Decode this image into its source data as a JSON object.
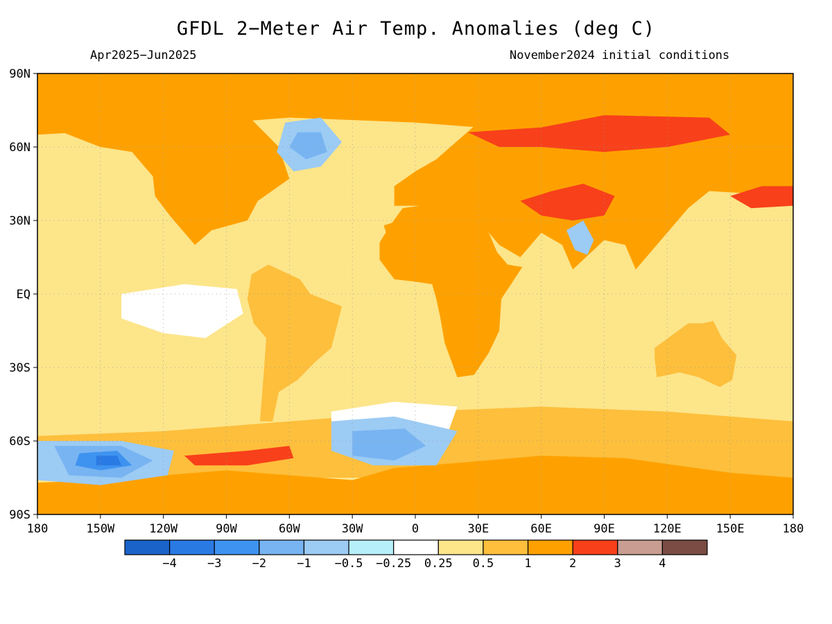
{
  "title": "GFDL 2−Meter Air Temp. Anomalies (deg C)",
  "period": "Apr2025−Jun2025",
  "initial_conditions": "November2024 initial conditions",
  "axes": {
    "lat_labels": [
      "90N",
      "60N",
      "30N",
      "EQ",
      "30S",
      "60S",
      "90S"
    ],
    "lat_values": [
      90,
      60,
      30,
      0,
      -30,
      -60,
      -90
    ],
    "lon_labels": [
      "180",
      "150W",
      "120W",
      "90W",
      "60W",
      "30W",
      "0",
      "30E",
      "60E",
      "90E",
      "120E",
      "150E",
      "180"
    ],
    "lon_values": [
      -180,
      -150,
      -120,
      -90,
      -60,
      -30,
      0,
      30,
      60,
      90,
      120,
      150,
      180
    ]
  },
  "legend": {
    "bins": [
      {
        "color": "#1a63c9"
      },
      {
        "color": "#2a7ae4"
      },
      {
        "color": "#3f93f0"
      },
      {
        "color": "#78b4f2"
      },
      {
        "color": "#9ccbf4"
      },
      {
        "color": "#b6effa"
      },
      {
        "color": "#ffffff"
      },
      {
        "color": "#fde58a"
      },
      {
        "color": "#fdbf3c"
      },
      {
        "color": "#fea100"
      },
      {
        "color": "#f8401a"
      },
      {
        "color": "#c99d92"
      },
      {
        "color": "#7a4c43"
      }
    ],
    "labels": [
      "−4",
      "−3",
      "−2",
      "−1",
      "−0.5",
      "−0.25",
      "0.25",
      "0.5",
      "1",
      "2",
      "3",
      "4"
    ]
  },
  "colors": {
    "background": "#fde58a",
    "warm": "#fdbf3c",
    "hot": "#fea100",
    "very_hot": "#f8401a",
    "neutral": "#ffffff",
    "cool": "#9ccbf4",
    "cold": "#78b4f2",
    "very_cold": "#3f93f0",
    "coldest": "#2a7ae4"
  },
  "map": {
    "regions": [
      {
        "name": "arctic-belt",
        "tier": "hot",
        "pts": [
          [
            -180,
            90
          ],
          [
            180,
            90
          ],
          [
            180,
            60
          ],
          [
            120,
            65
          ],
          [
            60,
            66
          ],
          [
            0,
            70
          ],
          [
            -60,
            72
          ],
          [
            -120,
            68
          ],
          [
            -180,
            65
          ]
        ]
      },
      {
        "name": "north-america",
        "tier": "hot",
        "pts": [
          [
            -168,
            66
          ],
          [
            -150,
            70
          ],
          [
            -130,
            70
          ],
          [
            -110,
            72
          ],
          [
            -80,
            73
          ],
          [
            -65,
            60
          ],
          [
            -60,
            47
          ],
          [
            -75,
            38
          ],
          [
            -80,
            30
          ],
          [
            -97,
            26
          ],
          [
            -105,
            20
          ],
          [
            -117,
            32
          ],
          [
            -124,
            40
          ],
          [
            -125,
            48
          ],
          [
            -135,
            58
          ],
          [
            -150,
            60
          ]
        ]
      },
      {
        "name": "eurasia",
        "tier": "hot",
        "pts": [
          [
            -10,
            36
          ],
          [
            -10,
            44
          ],
          [
            0,
            50
          ],
          [
            10,
            55
          ],
          [
            30,
            70
          ],
          [
            60,
            72
          ],
          [
            100,
            76
          ],
          [
            140,
            73
          ],
          [
            170,
            68
          ],
          [
            180,
            66
          ],
          [
            180,
            40
          ],
          [
            140,
            42
          ],
          [
            130,
            35
          ],
          [
            120,
            25
          ],
          [
            105,
            10
          ],
          [
            100,
            20
          ],
          [
            90,
            22
          ],
          [
            75,
            10
          ],
          [
            70,
            20
          ],
          [
            60,
            25
          ],
          [
            50,
            15
          ],
          [
            40,
            20
          ],
          [
            30,
            30
          ],
          [
            10,
            36
          ]
        ]
      },
      {
        "name": "africa",
        "tier": "hot",
        "pts": [
          [
            -17,
            21
          ],
          [
            -17,
            14
          ],
          [
            -10,
            6
          ],
          [
            0,
            5
          ],
          [
            8,
            4
          ],
          [
            10,
            -2
          ],
          [
            12,
            -10
          ],
          [
            14,
            -20
          ],
          [
            20,
            -34
          ],
          [
            28,
            -33
          ],
          [
            35,
            -24
          ],
          [
            40,
            -15
          ],
          [
            41,
            -2
          ],
          [
            51,
            11
          ],
          [
            44,
            12
          ],
          [
            38,
            18
          ],
          [
            32,
            31
          ],
          [
            10,
            37
          ],
          [
            -6,
            35
          ],
          [
            -12,
            28
          ]
        ]
      },
      {
        "name": "south-america",
        "tier": "warm",
        "pts": [
          [
            -80,
            -2
          ],
          [
            -78,
            8
          ],
          [
            -70,
            12
          ],
          [
            -55,
            6
          ],
          [
            -50,
            0
          ],
          [
            -35,
            -5
          ],
          [
            -37,
            -12
          ],
          [
            -40,
            -22
          ],
          [
            -48,
            -28
          ],
          [
            -56,
            -35
          ],
          [
            -65,
            -40
          ],
          [
            -68,
            -52
          ],
          [
            -74,
            -52
          ],
          [
            -72,
            -30
          ],
          [
            -71,
            -18
          ],
          [
            -77,
            -12
          ]
        ]
      },
      {
        "name": "australia",
        "tier": "warm",
        "pts": [
          [
            114,
            -22
          ],
          [
            122,
            -17
          ],
          [
            130,
            -12
          ],
          [
            137,
            -12
          ],
          [
            142,
            -11
          ],
          [
            146,
            -18
          ],
          [
            153,
            -25
          ],
          [
            151,
            -35
          ],
          [
            145,
            -38
          ],
          [
            135,
            -34
          ],
          [
            126,
            -32
          ],
          [
            115,
            -34
          ],
          [
            114,
            -26
          ]
        ]
      },
      {
        "name": "southern-ring",
        "tier": "warm",
        "pts": [
          [
            -180,
            -58
          ],
          [
            -120,
            -56
          ],
          [
            -60,
            -52
          ],
          [
            0,
            -48
          ],
          [
            60,
            -46
          ],
          [
            120,
            -48
          ],
          [
            180,
            -52
          ],
          [
            180,
            -75
          ],
          [
            -180,
            -75
          ]
        ]
      },
      {
        "name": "antarctica",
        "tier": "hot",
        "pts": [
          [
            -180,
            -90
          ],
          [
            180,
            -90
          ],
          [
            180,
            -75
          ],
          [
            150,
            -73
          ],
          [
            100,
            -67
          ],
          [
            60,
            -66
          ],
          [
            20,
            -69
          ],
          [
            -10,
            -71
          ],
          [
            -30,
            -76
          ],
          [
            -60,
            -74
          ],
          [
            -90,
            -72
          ],
          [
            -120,
            -74
          ],
          [
            -150,
            -76
          ],
          [
            -180,
            -77
          ]
        ]
      },
      {
        "name": "sahara-core",
        "tier": "hot",
        "pts": [
          [
            -15,
            28
          ],
          [
            0,
            32
          ],
          [
            20,
            30
          ],
          [
            35,
            25
          ],
          [
            40,
            15
          ],
          [
            30,
            10
          ],
          [
            10,
            12
          ],
          [
            -10,
            14
          ]
        ]
      },
      {
        "name": "siberia-hot",
        "tier": "very_hot",
        "pts": [
          [
            25,
            66
          ],
          [
            60,
            68
          ],
          [
            90,
            73
          ],
          [
            140,
            72
          ],
          [
            150,
            65
          ],
          [
            120,
            60
          ],
          [
            90,
            58
          ],
          [
            60,
            60
          ],
          [
            40,
            60
          ]
        ]
      },
      {
        "name": "central-asia-hot",
        "tier": "very_hot",
        "pts": [
          [
            50,
            38
          ],
          [
            65,
            42
          ],
          [
            80,
            45
          ],
          [
            95,
            40
          ],
          [
            90,
            32
          ],
          [
            75,
            30
          ],
          [
            60,
            32
          ]
        ]
      },
      {
        "name": "north-pacific-hot",
        "tier": "very_hot",
        "pts": [
          [
            150,
            40
          ],
          [
            165,
            44
          ],
          [
            180,
            44
          ],
          [
            180,
            36
          ],
          [
            160,
            35
          ]
        ]
      },
      {
        "name": "amundsen-hot",
        "tier": "very_hot",
        "pts": [
          [
            -110,
            -66
          ],
          [
            -80,
            -64
          ],
          [
            -60,
            -62
          ],
          [
            -58,
            -67
          ],
          [
            -80,
            -70
          ],
          [
            -105,
            -70
          ]
        ]
      },
      {
        "name": "tropical-pacific-white",
        "tier": "neutral",
        "pts": [
          [
            -140,
            0
          ],
          [
            -110,
            4
          ],
          [
            -85,
            2
          ],
          [
            -82,
            -8
          ],
          [
            -100,
            -18
          ],
          [
            -120,
            -16
          ],
          [
            -140,
            -10
          ]
        ]
      },
      {
        "name": "south-atlantic-white",
        "tier": "neutral",
        "pts": [
          [
            -40,
            -48
          ],
          [
            -10,
            -44
          ],
          [
            20,
            -46
          ],
          [
            15,
            -58
          ],
          [
            -15,
            -62
          ],
          [
            -40,
            -60
          ]
        ]
      },
      {
        "name": "labrador-cool",
        "tier": "cool",
        "pts": [
          [
            -62,
            70
          ],
          [
            -45,
            72
          ],
          [
            -35,
            62
          ],
          [
            -45,
            52
          ],
          [
            -58,
            50
          ],
          [
            -66,
            58
          ]
        ]
      },
      {
        "name": "labrador-cold",
        "tier": "cold",
        "pts": [
          [
            -56,
            66
          ],
          [
            -45,
            66
          ],
          [
            -42,
            58
          ],
          [
            -52,
            55
          ],
          [
            -60,
            60
          ]
        ]
      },
      {
        "name": "india-cool",
        "tier": "cool",
        "pts": [
          [
            72,
            26
          ],
          [
            80,
            30
          ],
          [
            85,
            22
          ],
          [
            82,
            16
          ],
          [
            76,
            18
          ]
        ]
      },
      {
        "name": "weddell-cool",
        "tier": "cool",
        "pts": [
          [
            -40,
            -52
          ],
          [
            -10,
            -50
          ],
          [
            20,
            -56
          ],
          [
            10,
            -70
          ],
          [
            -20,
            -70
          ],
          [
            -40,
            -64
          ]
        ]
      },
      {
        "name": "weddell-cold",
        "tier": "cold",
        "pts": [
          [
            -30,
            -56
          ],
          [
            -5,
            -55
          ],
          [
            5,
            -62
          ],
          [
            -10,
            -68
          ],
          [
            -30,
            -66
          ]
        ]
      },
      {
        "name": "ross-cool",
        "tier": "cool",
        "pts": [
          [
            -180,
            -60
          ],
          [
            -140,
            -60
          ],
          [
            -115,
            -64
          ],
          [
            -118,
            -74
          ],
          [
            -150,
            -78
          ],
          [
            -180,
            -76
          ]
        ]
      },
      {
        "name": "ross-cold",
        "tier": "cold",
        "pts": [
          [
            -172,
            -62
          ],
          [
            -140,
            -62
          ],
          [
            -125,
            -68
          ],
          [
            -140,
            -75
          ],
          [
            -165,
            -74
          ]
        ]
      },
      {
        "name": "ross-very-cold",
        "tier": "very_cold",
        "pts": [
          [
            -160,
            -65
          ],
          [
            -142,
            -64
          ],
          [
            -135,
            -70
          ],
          [
            -150,
            -72
          ],
          [
            -162,
            -70
          ]
        ]
      },
      {
        "name": "ross-core",
        "tier": "coldest",
        "pts": [
          [
            -152,
            -66
          ],
          [
            -142,
            -66
          ],
          [
            -140,
            -70
          ],
          [
            -152,
            -70
          ]
        ]
      }
    ]
  }
}
